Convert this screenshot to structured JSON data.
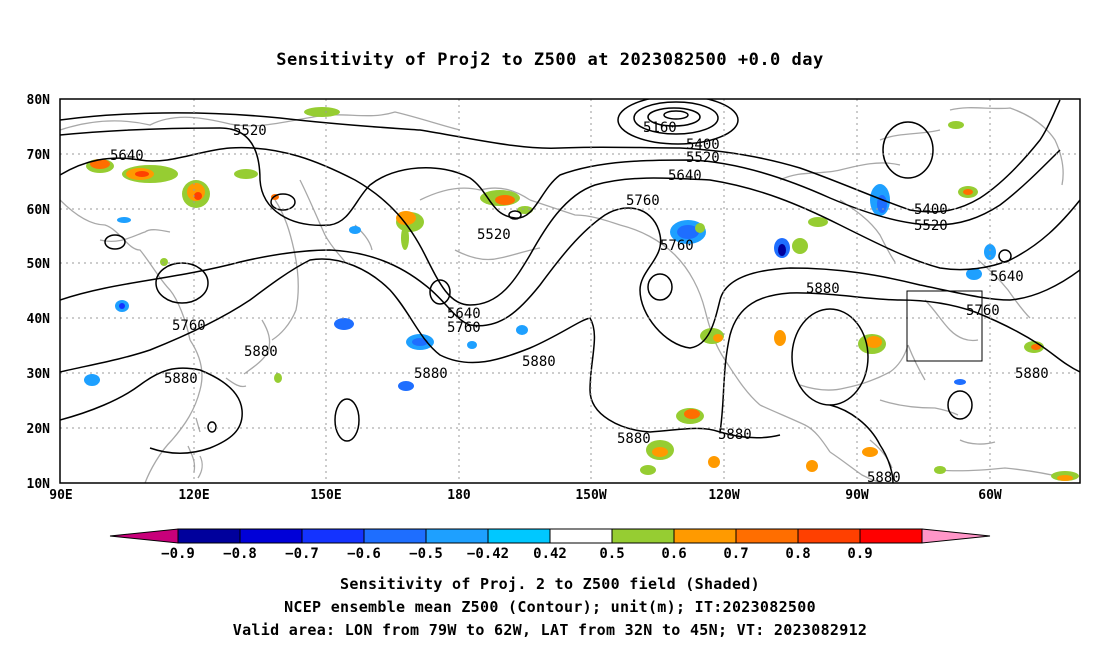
{
  "title": "Sensitivity of Proj2 to Z500 at 2023082500 +0.0 day",
  "map": {
    "lat_labels": [
      "80N",
      "70N",
      "60N",
      "50N",
      "40N",
      "30N",
      "20N",
      "10N"
    ],
    "lon_labels": [
      "90E",
      "120E",
      "150E",
      "180",
      "150W",
      "120W",
      "90W",
      "60W"
    ],
    "valid_box": {
      "lon_range": [
        "79W",
        "62W"
      ],
      "lat_range": [
        "32N",
        "45N"
      ]
    },
    "contour_labels": [
      {
        "text": "5520"
      },
      {
        "text": "5640"
      },
      {
        "text": "5160"
      },
      {
        "text": "5400"
      },
      {
        "text": "5520"
      },
      {
        "text": "5640"
      },
      {
        "text": "5760"
      },
      {
        "text": "5520"
      },
      {
        "text": "5760"
      },
      {
        "text": "5400"
      },
      {
        "text": "5520"
      },
      {
        "text": "5640"
      },
      {
        "text": "5640"
      },
      {
        "text": "5760"
      },
      {
        "text": "5880"
      },
      {
        "text": "5760"
      },
      {
        "text": "5760"
      },
      {
        "text": "5880"
      },
      {
        "text": "5880"
      },
      {
        "text": "5880"
      },
      {
        "text": "5880"
      },
      {
        "text": "5880"
      },
      {
        "text": "5880"
      },
      {
        "text": "5880"
      },
      {
        "text": "5880"
      }
    ]
  },
  "colorbar": {
    "labels": [
      "-0.9",
      "-0.8",
      "-0.7",
      "-0.6",
      "-0.5",
      "-0.42",
      "0.42",
      "0.5",
      "0.6",
      "0.7",
      "0.8",
      "0.9"
    ],
    "colors": [
      "#c8007a",
      "#00009c",
      "#0000d8",
      "#1433ff",
      "#1e6eff",
      "#1ea0ff",
      "#00c8ff",
      "#ffffff",
      "#96cd32",
      "#ff9a00",
      "#ff6e00",
      "#ff4000",
      "#ff0000",
      "#ff96c8"
    ]
  },
  "captions": {
    "line1": "Sensitivity of Proj. 2 to Z500 field (Shaded)",
    "line2": "NCEP ensemble mean Z500 (Contour); unit(m); IT:2023082500",
    "line3": "Valid area: LON from 79W to 62W, LAT from 32N to 45N; VT: 2023082912"
  }
}
